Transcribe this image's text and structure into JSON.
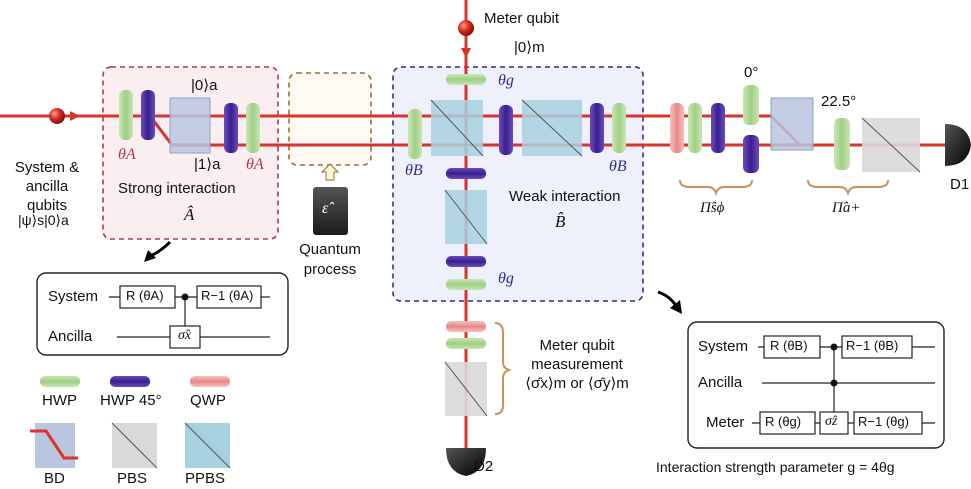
{
  "input": {
    "line1": "System &",
    "line2": "ancilla",
    "line3": "qubits",
    "state": "|ψ⟩s|0⟩a"
  },
  "strong": {
    "theta_left": "θA",
    "theta_right": "θA",
    "ket0": "|0⟩a",
    "ket1": "|1⟩a",
    "title": "Strong interaction",
    "op": "Â"
  },
  "process": {
    "symbol": "ε̂",
    "line1": "Quantum",
    "line2": "process"
  },
  "meter": {
    "title": "Meter qubit",
    "ket": "|0⟩m",
    "theta_top": "θg",
    "theta_bottom": "θg",
    "detector": "D2",
    "meas_line1": "Meter qubit",
    "meas_line2": "measurement",
    "meas_line3": "⟨σ̂x⟩m or ⟨σ̂y⟩m"
  },
  "weak": {
    "theta_left": "θB",
    "theta_right": "θB",
    "title": "Weak interaction",
    "op": "B̂"
  },
  "projection": {
    "angle1": "0°",
    "angle2": "22.5°",
    "pi_s": "Π̂sϕ",
    "pi_a": "Π̂a+",
    "detector": "D1"
  },
  "circuit1": {
    "system": "System",
    "ancilla": "Ancilla",
    "gate1": "R (θA)",
    "gate2": "R−1 (θA)",
    "gate3": "σ̂x"
  },
  "circuit2": {
    "system": "System",
    "ancilla": "Ancilla",
    "meter": "Meter",
    "gate1": "R (θB)",
    "gate2": "R−1 (θB)",
    "gate3": "R (θg)",
    "gate4": "σ̂z",
    "gate5": "R−1 (θg)",
    "caption": "Interaction strength parameter g = 4θg"
  },
  "legend": {
    "hwp": "HWP",
    "hwp45": "HWP 45°",
    "qwp": "QWP",
    "bd": "BD",
    "pbs": "PBS",
    "ppbs": "PPBS"
  },
  "colors": {
    "beam": "#d9342b",
    "hwp": "#a8d08d",
    "hwp45": "#4b2a9e",
    "qwp": "#ef9a9a",
    "bd": "#b9c6e0",
    "pbs": "#d9d9d9",
    "ppbs": "#a8d1e0",
    "strong_box": "#b03a48",
    "weak_box": "#2a2f8f",
    "process_box": "#9a6b3a"
  }
}
